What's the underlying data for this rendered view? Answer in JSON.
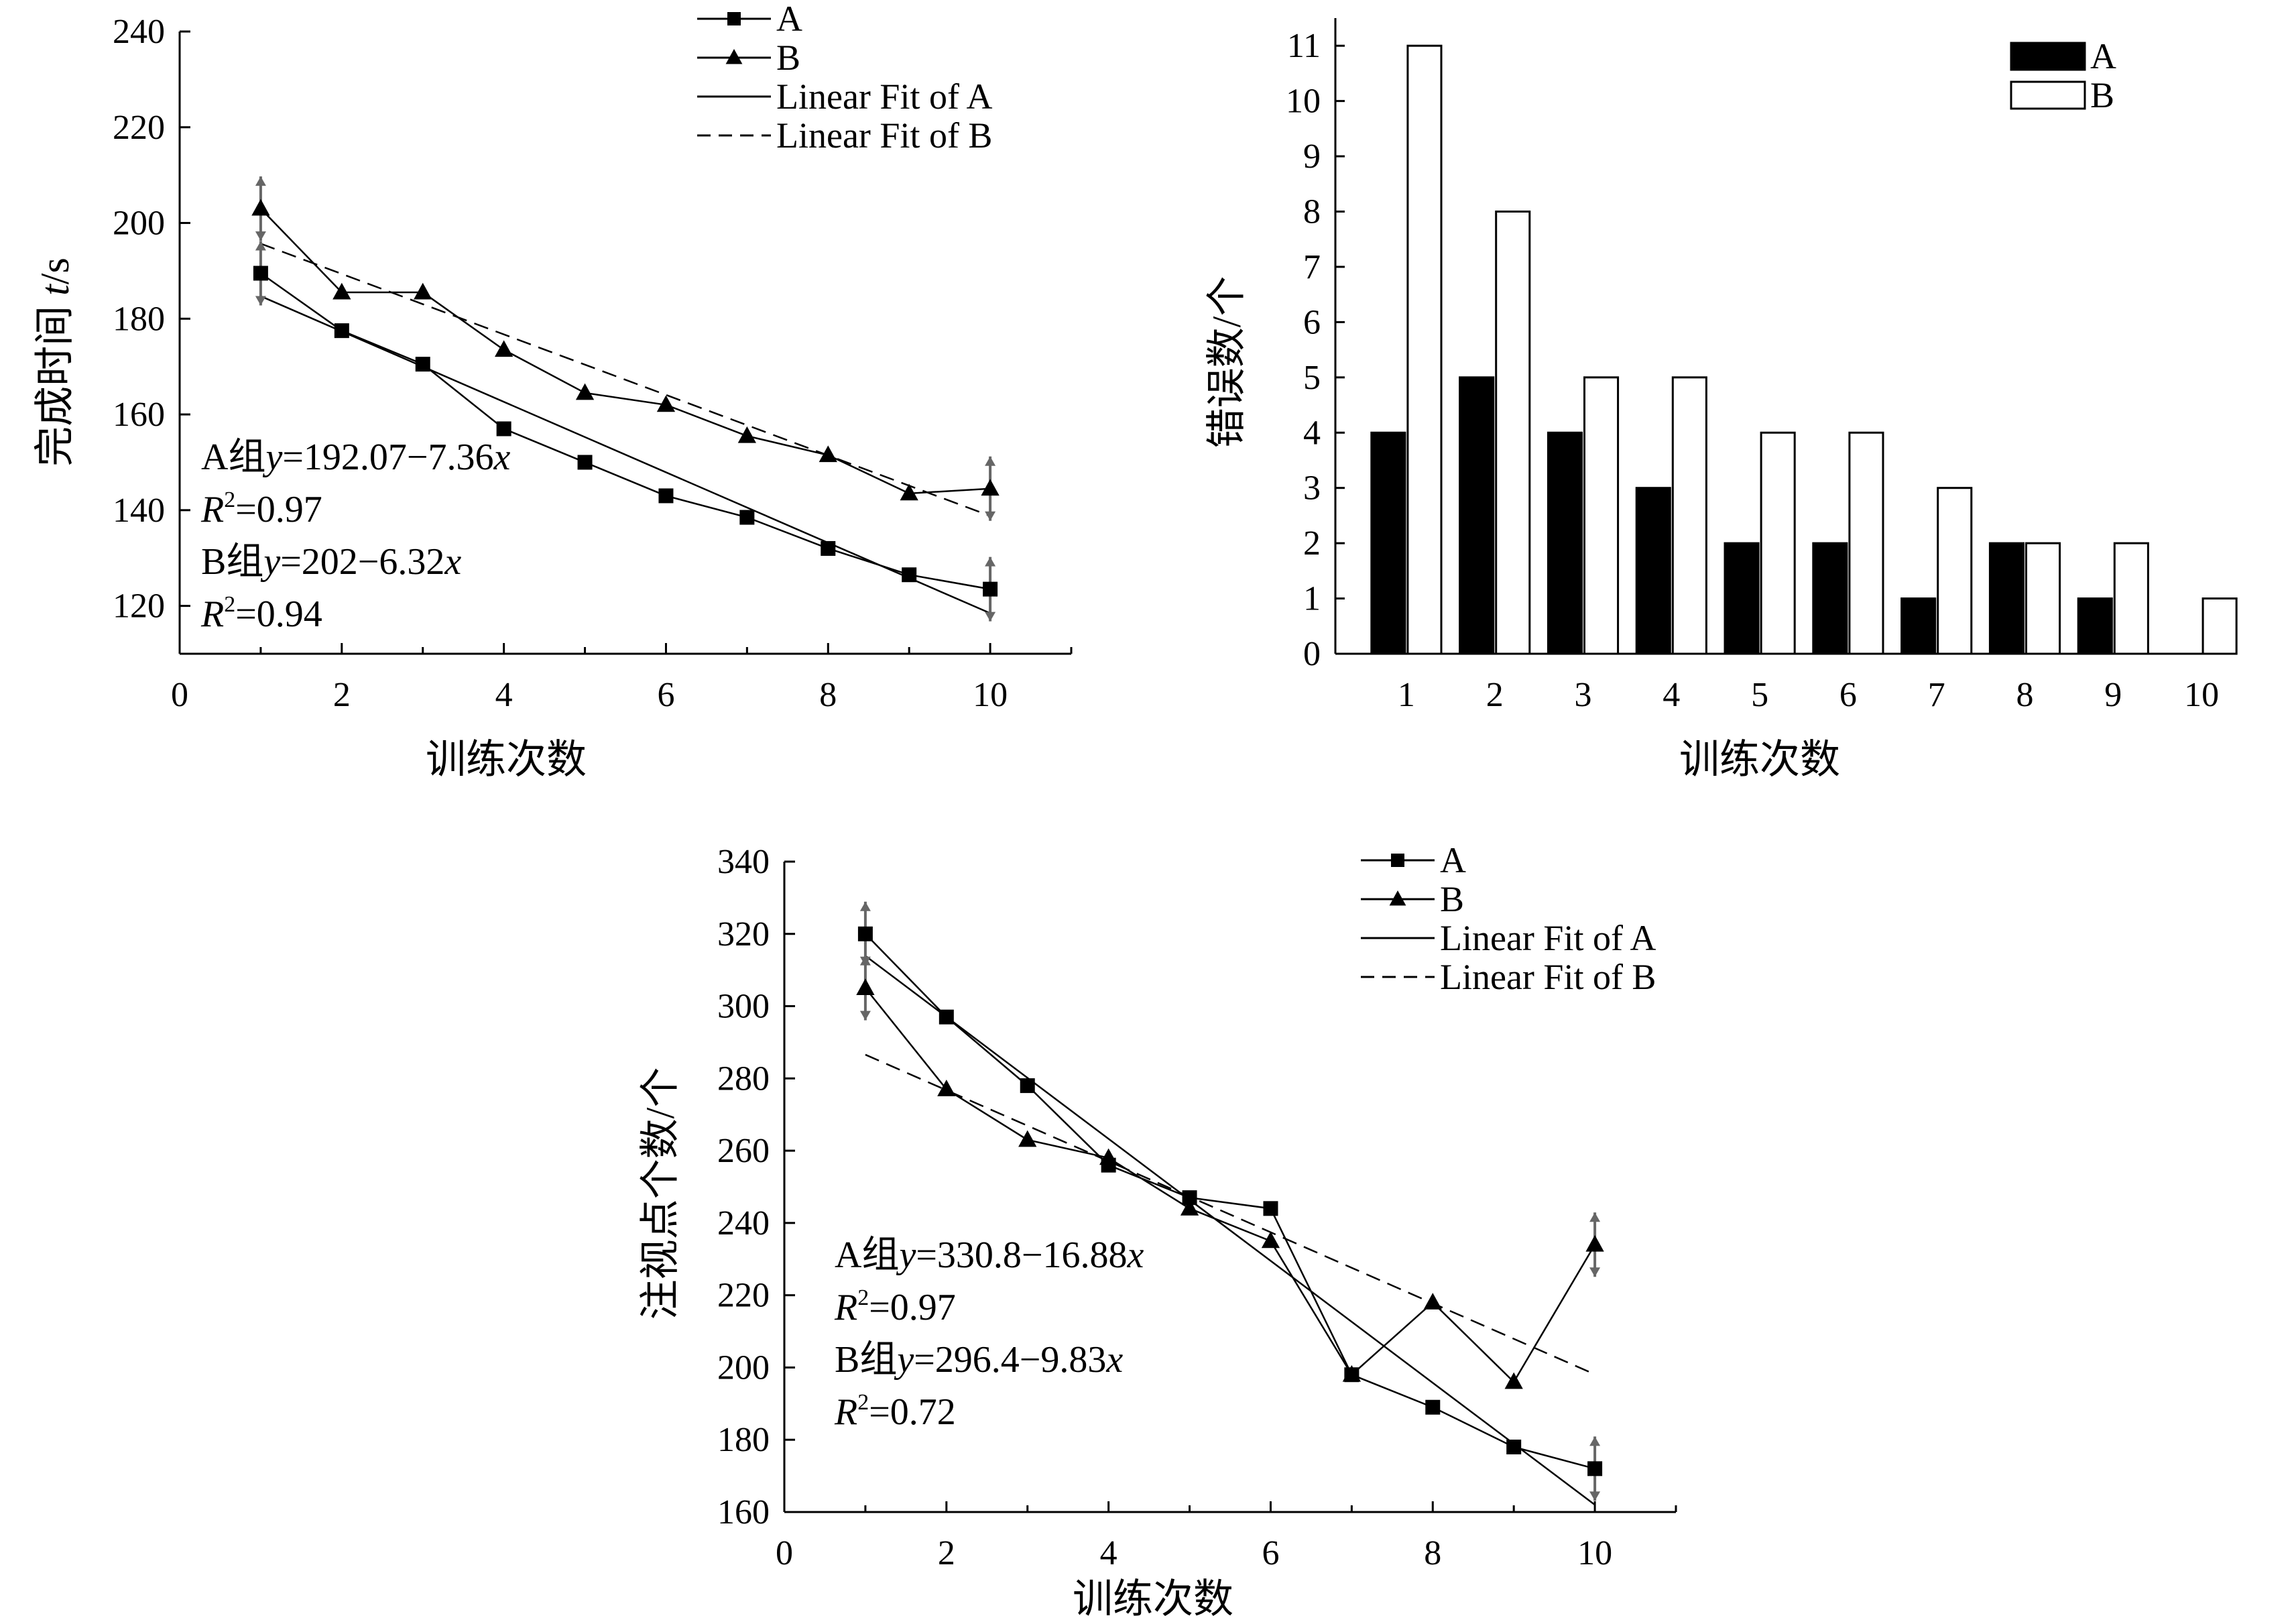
{
  "chart_data": [
    {
      "type": "line",
      "id": "chart1",
      "xlabel": "训练次数",
      "ylabel": "完成时间 t/s",
      "ylabel_main": "完成时间 ",
      "ylabel_ital": "t",
      "ylabel_unit": "/s",
      "xlim": [
        0,
        11
      ],
      "ylim": [
        110,
        240
      ],
      "xticks": [
        0,
        2,
        4,
        6,
        8,
        10
      ],
      "yticks": [
        120,
        140,
        160,
        180,
        200,
        220,
        240
      ],
      "series": [
        {
          "name": "A",
          "marker": "square",
          "x": [
            1,
            2,
            3,
            4,
            5,
            6,
            7,
            8,
            9,
            10
          ],
          "y": [
            189.5,
            177.5,
            170.5,
            157,
            150,
            143,
            138.5,
            132,
            126.5,
            123.5
          ]
        },
        {
          "name": "B",
          "marker": "triangle",
          "x": [
            1,
            2,
            3,
            4,
            5,
            6,
            7,
            8,
            9,
            10
          ],
          "y": [
            203,
            185.5,
            185.5,
            173.5,
            164.5,
            162,
            155.5,
            151.5,
            143.5,
            144.5
          ]
        }
      ],
      "fits": [
        {
          "name": "Linear Fit of A",
          "dash": false,
          "x": [
            1,
            10
          ],
          "y": [
            184.71,
            118.47
          ]
        },
        {
          "name": "Linear Fit of B",
          "dash": true,
          "x": [
            1,
            10
          ],
          "y": [
            195.68,
            138.8
          ]
        }
      ],
      "legend": [
        {
          "label": "A",
          "kind": "square"
        },
        {
          "label": "B",
          "kind": "triangle"
        },
        {
          "label": "Linear Fit of A",
          "kind": "solid"
        },
        {
          "label": "Linear Fit of B",
          "kind": "dashed"
        }
      ],
      "equations": {
        "a_prefix": "A组",
        "a_var": "y",
        "a_formula": "=192.07−7.36",
        "a_x": "x",
        "a_r": "R",
        "a_sup": "2",
        "a_rval": "=0.97",
        "b_prefix": "B组",
        "b_var": "y",
        "b_formula": "=202−6.32",
        "b_x": "x",
        "b_r": "R",
        "b_sup": "2",
        "b_rval": "=0.94"
      }
    },
    {
      "type": "bar",
      "id": "chart2",
      "xlabel": "训练次数",
      "ylabel": "错误数/个",
      "categories": [
        "1",
        "2",
        "3",
        "4",
        "5",
        "6",
        "7",
        "8",
        "9",
        "10"
      ],
      "ylim": [
        0,
        11.5
      ],
      "yticks": [
        0,
        1,
        2,
        3,
        4,
        5,
        6,
        7,
        8,
        9,
        10,
        11
      ],
      "series": [
        {
          "name": "A",
          "color": "#000000",
          "values": [
            4,
            5,
            4,
            3,
            2,
            2,
            1,
            2,
            1,
            0
          ]
        },
        {
          "name": "B",
          "color": "#ffffff",
          "values": [
            11,
            8,
            5,
            5,
            4,
            4,
            3,
            2,
            2,
            1
          ]
        }
      ],
      "legend": [
        {
          "label": "A",
          "fill": "#000000"
        },
        {
          "label": "B",
          "fill": "#ffffff"
        }
      ]
    },
    {
      "type": "line",
      "id": "chart3",
      "xlabel": "训练次数",
      "ylabel": "注视点个数/个",
      "xlim": [
        0,
        11
      ],
      "ylim": [
        160,
        340
      ],
      "xticks": [
        0,
        2,
        4,
        6,
        8,
        10
      ],
      "yticks": [
        160,
        180,
        200,
        220,
        240,
        260,
        280,
        300,
        320,
        340
      ],
      "series": [
        {
          "name": "A",
          "marker": "square",
          "x": [
            1,
            2,
            3,
            4,
            5,
            6,
            7,
            8,
            9,
            10
          ],
          "y": [
            320,
            297,
            278,
            256,
            247,
            244,
            198,
            189,
            178,
            172
          ]
        },
        {
          "name": "B",
          "marker": "triangle",
          "x": [
            1,
            2,
            3,
            4,
            5,
            6,
            7,
            8,
            9,
            10
          ],
          "y": [
            305,
            277,
            263,
            258,
            244,
            235,
            198,
            218,
            196,
            234
          ]
        }
      ],
      "fits": [
        {
          "name": "Linear Fit of A",
          "dash": false,
          "x": [
            1,
            10
          ],
          "y": [
            313.92,
            162.0
          ]
        },
        {
          "name": "Linear Fit of B",
          "dash": true,
          "x": [
            1,
            10
          ],
          "y": [
            286.57,
            198.1
          ]
        }
      ],
      "legend": [
        {
          "label": "A",
          "kind": "square"
        },
        {
          "label": "B",
          "kind": "triangle"
        },
        {
          "label": "Linear Fit of A",
          "kind": "solid"
        },
        {
          "label": "Linear Fit of B",
          "kind": "dashed"
        }
      ],
      "equations": {
        "a_prefix": "A组",
        "a_var": "y",
        "a_formula": "=330.8−16.88",
        "a_x": "x",
        "a_r": "R",
        "a_sup": "2",
        "a_rval": "=0.97",
        "b_prefix": "B组",
        "b_var": "y",
        "b_formula": "=296.4−9.83",
        "b_x": "x",
        "b_r": "R",
        "b_sup": "2",
        "b_rval": "=0.72"
      }
    }
  ]
}
